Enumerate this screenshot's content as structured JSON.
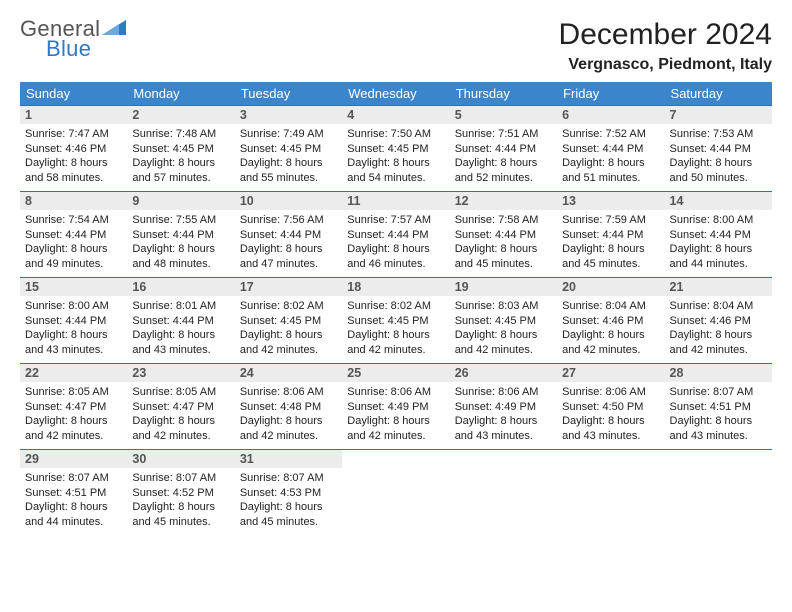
{
  "brand": {
    "line1": "General",
    "line2": "Blue",
    "tri_color": "#2f78c4"
  },
  "title": "December 2024",
  "location": "Vergnasco, Piedmont, Italy",
  "colors": {
    "header_bg": "#3a85cc",
    "header_text": "#ffffff",
    "row_border": "#3a6fa5",
    "daynum_bg": "#ececec",
    "daynum_text": "#555555",
    "body_text": "#222222"
  },
  "daysOfWeek": [
    "Sunday",
    "Monday",
    "Tuesday",
    "Wednesday",
    "Thursday",
    "Friday",
    "Saturday"
  ],
  "weeks": [
    [
      {
        "n": "1",
        "sr": "7:47 AM",
        "ss": "4:46 PM",
        "dl": "8 hours and 58 minutes."
      },
      {
        "n": "2",
        "sr": "7:48 AM",
        "ss": "4:45 PM",
        "dl": "8 hours and 57 minutes."
      },
      {
        "n": "3",
        "sr": "7:49 AM",
        "ss": "4:45 PM",
        "dl": "8 hours and 55 minutes."
      },
      {
        "n": "4",
        "sr": "7:50 AM",
        "ss": "4:45 PM",
        "dl": "8 hours and 54 minutes."
      },
      {
        "n": "5",
        "sr": "7:51 AM",
        "ss": "4:44 PM",
        "dl": "8 hours and 52 minutes."
      },
      {
        "n": "6",
        "sr": "7:52 AM",
        "ss": "4:44 PM",
        "dl": "8 hours and 51 minutes."
      },
      {
        "n": "7",
        "sr": "7:53 AM",
        "ss": "4:44 PM",
        "dl": "8 hours and 50 minutes."
      }
    ],
    [
      {
        "n": "8",
        "sr": "7:54 AM",
        "ss": "4:44 PM",
        "dl": "8 hours and 49 minutes."
      },
      {
        "n": "9",
        "sr": "7:55 AM",
        "ss": "4:44 PM",
        "dl": "8 hours and 48 minutes."
      },
      {
        "n": "10",
        "sr": "7:56 AM",
        "ss": "4:44 PM",
        "dl": "8 hours and 47 minutes."
      },
      {
        "n": "11",
        "sr": "7:57 AM",
        "ss": "4:44 PM",
        "dl": "8 hours and 46 minutes."
      },
      {
        "n": "12",
        "sr": "7:58 AM",
        "ss": "4:44 PM",
        "dl": "8 hours and 45 minutes."
      },
      {
        "n": "13",
        "sr": "7:59 AM",
        "ss": "4:44 PM",
        "dl": "8 hours and 45 minutes."
      },
      {
        "n": "14",
        "sr": "8:00 AM",
        "ss": "4:44 PM",
        "dl": "8 hours and 44 minutes."
      }
    ],
    [
      {
        "n": "15",
        "sr": "8:00 AM",
        "ss": "4:44 PM",
        "dl": "8 hours and 43 minutes."
      },
      {
        "n": "16",
        "sr": "8:01 AM",
        "ss": "4:44 PM",
        "dl": "8 hours and 43 minutes."
      },
      {
        "n": "17",
        "sr": "8:02 AM",
        "ss": "4:45 PM",
        "dl": "8 hours and 42 minutes."
      },
      {
        "n": "18",
        "sr": "8:02 AM",
        "ss": "4:45 PM",
        "dl": "8 hours and 42 minutes."
      },
      {
        "n": "19",
        "sr": "8:03 AM",
        "ss": "4:45 PM",
        "dl": "8 hours and 42 minutes."
      },
      {
        "n": "20",
        "sr": "8:04 AM",
        "ss": "4:46 PM",
        "dl": "8 hours and 42 minutes."
      },
      {
        "n": "21",
        "sr": "8:04 AM",
        "ss": "4:46 PM",
        "dl": "8 hours and 42 minutes."
      }
    ],
    [
      {
        "n": "22",
        "sr": "8:05 AM",
        "ss": "4:47 PM",
        "dl": "8 hours and 42 minutes."
      },
      {
        "n": "23",
        "sr": "8:05 AM",
        "ss": "4:47 PM",
        "dl": "8 hours and 42 minutes."
      },
      {
        "n": "24",
        "sr": "8:06 AM",
        "ss": "4:48 PM",
        "dl": "8 hours and 42 minutes."
      },
      {
        "n": "25",
        "sr": "8:06 AM",
        "ss": "4:49 PM",
        "dl": "8 hours and 42 minutes."
      },
      {
        "n": "26",
        "sr": "8:06 AM",
        "ss": "4:49 PM",
        "dl": "8 hours and 43 minutes."
      },
      {
        "n": "27",
        "sr": "8:06 AM",
        "ss": "4:50 PM",
        "dl": "8 hours and 43 minutes."
      },
      {
        "n": "28",
        "sr": "8:07 AM",
        "ss": "4:51 PM",
        "dl": "8 hours and 43 minutes."
      }
    ],
    [
      {
        "n": "29",
        "sr": "8:07 AM",
        "ss": "4:51 PM",
        "dl": "8 hours and 44 minutes."
      },
      {
        "n": "30",
        "sr": "8:07 AM",
        "ss": "4:52 PM",
        "dl": "8 hours and 45 minutes."
      },
      {
        "n": "31",
        "sr": "8:07 AM",
        "ss": "4:53 PM",
        "dl": "8 hours and 45 minutes."
      },
      null,
      null,
      null,
      null
    ]
  ],
  "labels": {
    "sunrise": "Sunrise:",
    "sunset": "Sunset:",
    "daylight": "Daylight:"
  }
}
